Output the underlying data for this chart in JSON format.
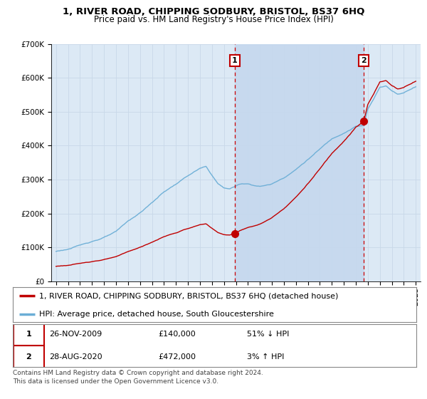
{
  "title": "1, RIVER ROAD, CHIPPING SODBURY, BRISTOL, BS37 6HQ",
  "subtitle": "Price paid vs. HM Land Registry's House Price Index (HPI)",
  "ylim": [
    0,
    700000
  ],
  "yticks": [
    0,
    100000,
    200000,
    300000,
    400000,
    500000,
    600000,
    700000
  ],
  "ytick_labels": [
    "£0",
    "£100K",
    "£200K",
    "£300K",
    "£400K",
    "£500K",
    "£600K",
    "£700K"
  ],
  "xlim_start": 1994.6,
  "xlim_end": 2025.4,
  "hpi_color": "#6baed6",
  "price_color": "#c00000",
  "marker_color": "#c00000",
  "vline_color": "#cc0000",
  "grid_color": "#c8d8e8",
  "plot_bg_color": "#dce9f5",
  "shade_color": "#c5d8ee",
  "sale1_x": 2009.91,
  "sale1_y": 140000,
  "sale1_label": "1",
  "sale2_x": 2020.66,
  "sale2_y": 472000,
  "sale2_label": "2",
  "legend_line1": "1, RIVER ROAD, CHIPPING SODBURY, BRISTOL, BS37 6HQ (detached house)",
  "legend_line2": "HPI: Average price, detached house, South Gloucestershire",
  "table_row1_num": "1",
  "table_row1_date": "26-NOV-2009",
  "table_row1_price": "£140,000",
  "table_row1_hpi": "51% ↓ HPI",
  "table_row2_num": "2",
  "table_row2_date": "28-AUG-2020",
  "table_row2_price": "£472,000",
  "table_row2_hpi": "3% ↑ HPI",
  "footnote": "Contains HM Land Registry data © Crown copyright and database right 2024.\nThis data is licensed under the Open Government Licence v3.0.",
  "title_fontsize": 9.5,
  "subtitle_fontsize": 8.5,
  "tick_fontsize": 7.5,
  "legend_fontsize": 8,
  "footnote_fontsize": 6.5
}
